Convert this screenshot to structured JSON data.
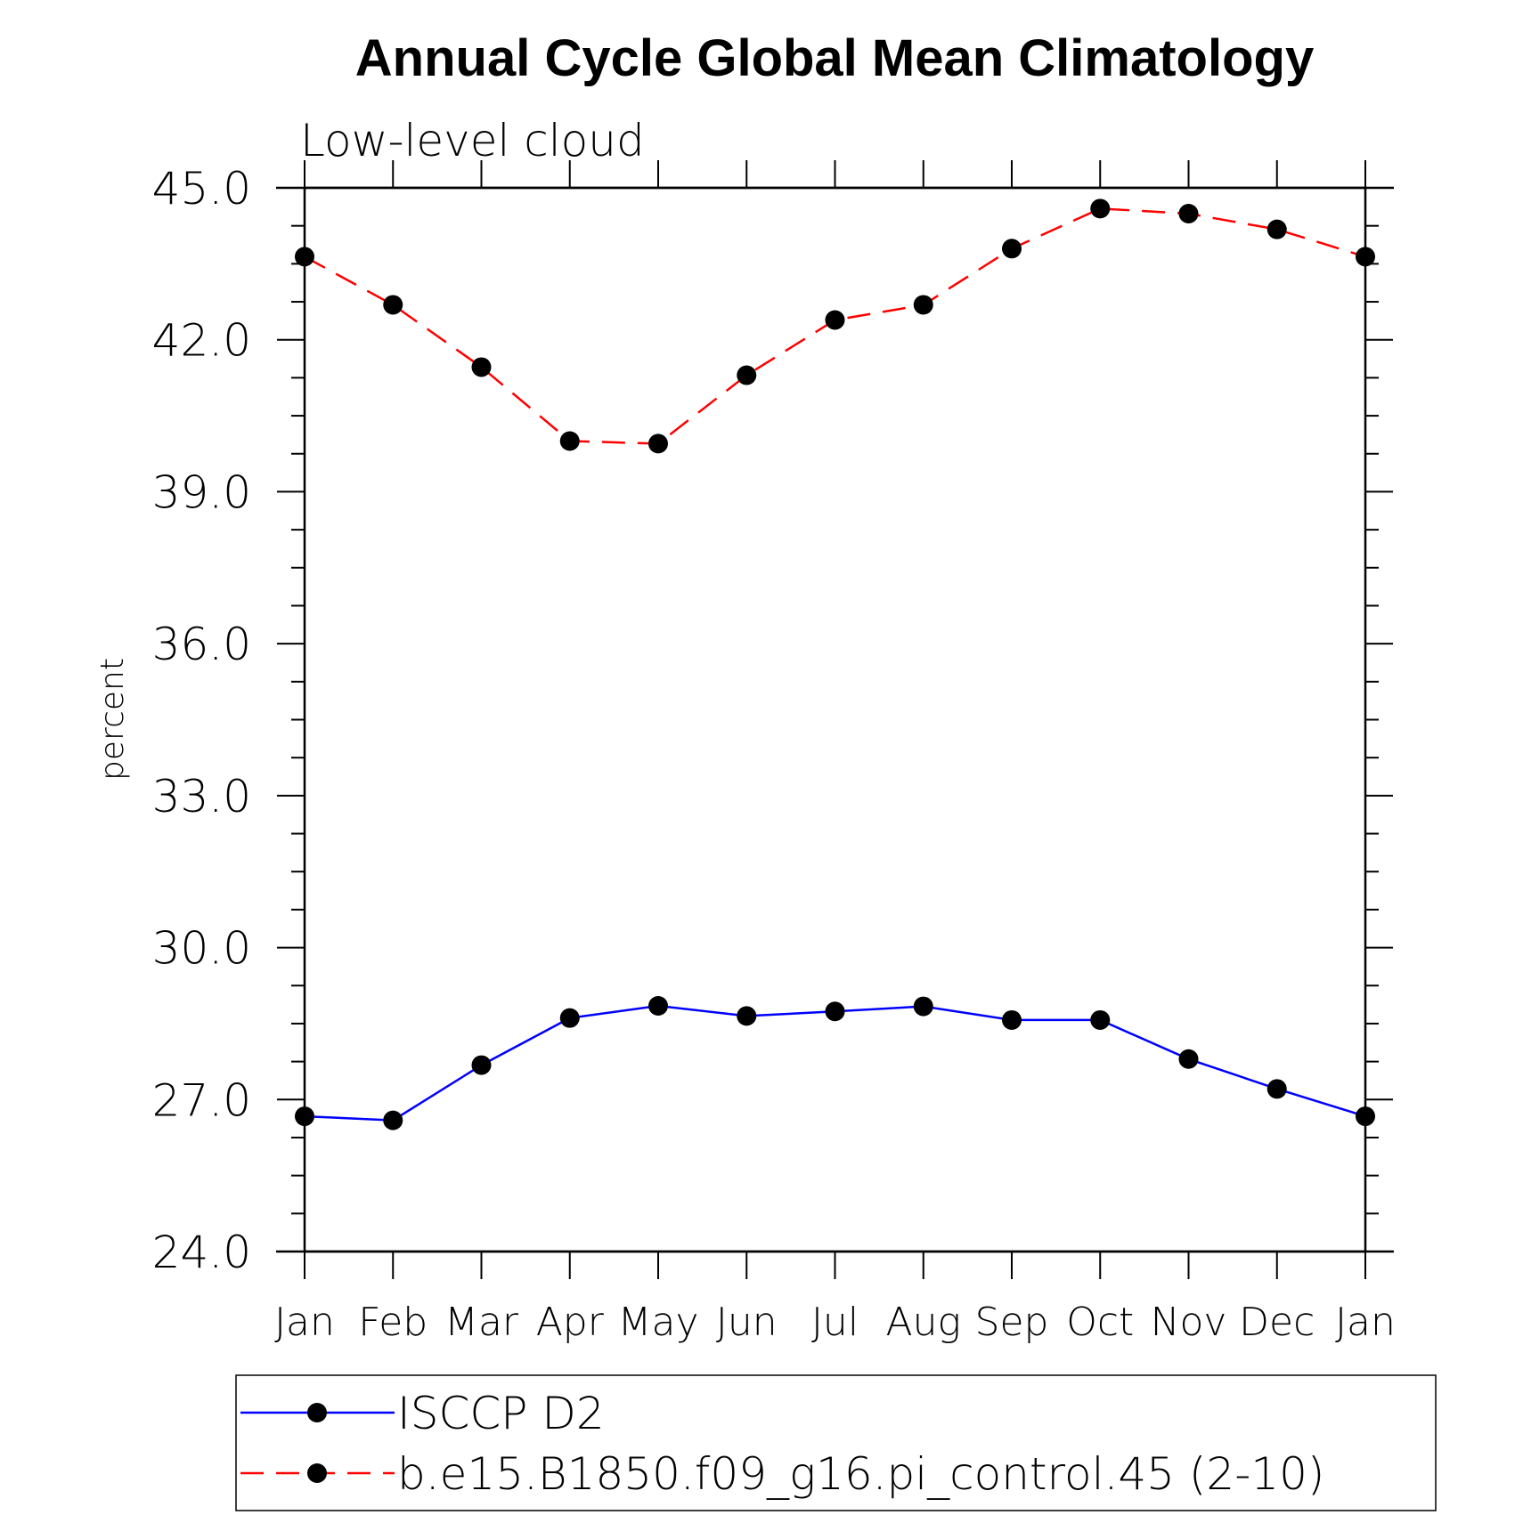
{
  "chart_data": {
    "type": "line",
    "title": "Annual Cycle Global Mean Climatology",
    "subtitle": "Low-level cloud",
    "xlabel": "",
    "ylabel": "percent",
    "categories": [
      "Jan",
      "Feb",
      "Mar",
      "Apr",
      "May",
      "Jun",
      "Jul",
      "Aug",
      "Sep",
      "Oct",
      "Nov",
      "Dec",
      "Jan"
    ],
    "ylim": [
      24.0,
      45.0
    ],
    "yticks": [
      "24.0",
      "27.0",
      "30.0",
      "33.0",
      "36.0",
      "39.0",
      "42.0",
      "45.0"
    ],
    "grid": false,
    "legend_position": "bottom",
    "series": [
      {
        "name": "ISCCP D2",
        "color": "#0000ff",
        "dash": "solid",
        "marker": "filled-circle",
        "values": [
          26.67,
          26.59,
          27.68,
          28.61,
          28.85,
          28.65,
          28.74,
          28.84,
          28.57,
          28.57,
          27.8,
          27.21,
          26.67
        ]
      },
      {
        "name": "b.e15.B1850.f09_g16.pi_control.45 (2-10)",
        "color": "#ff0000",
        "dash": "dashed",
        "marker": "filled-circle",
        "values": [
          43.64,
          42.69,
          41.46,
          40.0,
          39.95,
          41.3,
          42.39,
          42.69,
          43.8,
          44.59,
          44.49,
          44.18,
          43.64
        ]
      }
    ]
  }
}
